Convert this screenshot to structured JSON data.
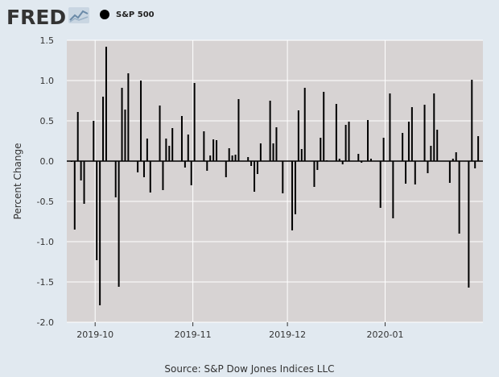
{
  "header": {
    "logo_text": "FRED",
    "logo_icon": "chart-line-icon"
  },
  "legend": {
    "series_label": "S&P 500",
    "marker_color": "#000000"
  },
  "source_text": "Source: S&P Dow Jones Indices LLC",
  "colors": {
    "page_background": "#e1e9f0",
    "plot_background": "#d7d3d3",
    "bars": "#000000"
  },
  "chart_data": {
    "type": "bar",
    "series": [
      {
        "name": "S&P 500"
      }
    ],
    "ylabel": "Percent Change",
    "xlabel": "",
    "ylim": [
      -2.0,
      1.5
    ],
    "yticks": [
      "1.5",
      "1.0",
      "0.5",
      "0.0",
      "-0.5",
      "-1.0",
      "-1.5",
      "-2.0"
    ],
    "ytick_values": [
      1.5,
      1.0,
      0.5,
      0.0,
      -0.5,
      -1.0,
      -1.5,
      -2.0
    ],
    "xlim": [
      "2019-09-22",
      "2020-01-30"
    ],
    "xticks": [
      {
        "label": "2019-10",
        "date": "2019-10-01"
      },
      {
        "label": "2019-11",
        "date": "2019-11-01"
      },
      {
        "label": "2019-12",
        "date": "2019-12-01"
      },
      {
        "label": "2020-01",
        "date": "2020-01-01"
      }
    ],
    "grid": true,
    "points": [
      {
        "x": "2019-09-23",
        "y": -0.01
      },
      {
        "x": "2019-09-24",
        "y": -0.85
      },
      {
        "x": "2019-09-25",
        "y": 0.61
      },
      {
        "x": "2019-09-26",
        "y": -0.24
      },
      {
        "x": "2019-09-27",
        "y": -0.53
      },
      {
        "x": "2019-09-30",
        "y": 0.5
      },
      {
        "x": "2019-10-01",
        "y": -1.23
      },
      {
        "x": "2019-10-02",
        "y": -1.79
      },
      {
        "x": "2019-10-03",
        "y": 0.8
      },
      {
        "x": "2019-10-04",
        "y": 1.42
      },
      {
        "x": "2019-10-07",
        "y": -0.45
      },
      {
        "x": "2019-10-08",
        "y": -1.56
      },
      {
        "x": "2019-10-09",
        "y": 0.91
      },
      {
        "x": "2019-10-10",
        "y": 0.64
      },
      {
        "x": "2019-10-11",
        "y": 1.09
      },
      {
        "x": "2019-10-14",
        "y": -0.14
      },
      {
        "x": "2019-10-15",
        "y": 1.0
      },
      {
        "x": "2019-10-16",
        "y": -0.2
      },
      {
        "x": "2019-10-17",
        "y": 0.28
      },
      {
        "x": "2019-10-18",
        "y": -0.39
      },
      {
        "x": "2019-10-21",
        "y": 0.69
      },
      {
        "x": "2019-10-22",
        "y": -0.36
      },
      {
        "x": "2019-10-23",
        "y": 0.28
      },
      {
        "x": "2019-10-24",
        "y": 0.19
      },
      {
        "x": "2019-10-25",
        "y": 0.41
      },
      {
        "x": "2019-10-28",
        "y": 0.56
      },
      {
        "x": "2019-10-29",
        "y": -0.08
      },
      {
        "x": "2019-10-30",
        "y": 0.33
      },
      {
        "x": "2019-10-31",
        "y": -0.3
      },
      {
        "x": "2019-11-01",
        "y": 0.97
      },
      {
        "x": "2019-11-04",
        "y": 0.37
      },
      {
        "x": "2019-11-05",
        "y": -0.12
      },
      {
        "x": "2019-11-06",
        "y": 0.07
      },
      {
        "x": "2019-11-07",
        "y": 0.27
      },
      {
        "x": "2019-11-08",
        "y": 0.26
      },
      {
        "x": "2019-11-11",
        "y": -0.2
      },
      {
        "x": "2019-11-12",
        "y": 0.16
      },
      {
        "x": "2019-11-13",
        "y": 0.07
      },
      {
        "x": "2019-11-14",
        "y": 0.08
      },
      {
        "x": "2019-11-15",
        "y": 0.77
      },
      {
        "x": "2019-11-18",
        "y": 0.05
      },
      {
        "x": "2019-11-19",
        "y": -0.06
      },
      {
        "x": "2019-11-20",
        "y": -0.38
      },
      {
        "x": "2019-11-21",
        "y": -0.16
      },
      {
        "x": "2019-11-22",
        "y": 0.22
      },
      {
        "x": "2019-11-25",
        "y": 0.75
      },
      {
        "x": "2019-11-26",
        "y": 0.22
      },
      {
        "x": "2019-11-27",
        "y": 0.42
      },
      {
        "x": "2019-11-29",
        "y": -0.4
      },
      {
        "x": "2019-12-02",
        "y": -0.86
      },
      {
        "x": "2019-12-03",
        "y": -0.66
      },
      {
        "x": "2019-12-04",
        "y": 0.63
      },
      {
        "x": "2019-12-05",
        "y": 0.15
      },
      {
        "x": "2019-12-06",
        "y": 0.91
      },
      {
        "x": "2019-12-09",
        "y": -0.32
      },
      {
        "x": "2019-12-10",
        "y": -0.11
      },
      {
        "x": "2019-12-11",
        "y": 0.29
      },
      {
        "x": "2019-12-12",
        "y": 0.86
      },
      {
        "x": "2019-12-13",
        "y": 0.01
      },
      {
        "x": "2019-12-16",
        "y": 0.71
      },
      {
        "x": "2019-12-17",
        "y": 0.03
      },
      {
        "x": "2019-12-18",
        "y": -0.04
      },
      {
        "x": "2019-12-19",
        "y": 0.45
      },
      {
        "x": "2019-12-20",
        "y": 0.49
      },
      {
        "x": "2019-12-23",
        "y": 0.09
      },
      {
        "x": "2019-12-24",
        "y": -0.02
      },
      {
        "x": "2019-12-26",
        "y": 0.51
      },
      {
        "x": "2019-12-27",
        "y": 0.03
      },
      {
        "x": "2019-12-30",
        "y": -0.58
      },
      {
        "x": "2019-12-31",
        "y": 0.29
      },
      {
        "x": "2020-01-02",
        "y": 0.84
      },
      {
        "x": "2020-01-03",
        "y": -0.71
      },
      {
        "x": "2020-01-06",
        "y": 0.35
      },
      {
        "x": "2020-01-07",
        "y": -0.28
      },
      {
        "x": "2020-01-08",
        "y": 0.49
      },
      {
        "x": "2020-01-09",
        "y": 0.67
      },
      {
        "x": "2020-01-10",
        "y": -0.29
      },
      {
        "x": "2020-01-13",
        "y": 0.7
      },
      {
        "x": "2020-01-14",
        "y": -0.15
      },
      {
        "x": "2020-01-15",
        "y": 0.19
      },
      {
        "x": "2020-01-16",
        "y": 0.84
      },
      {
        "x": "2020-01-17",
        "y": 0.39
      },
      {
        "x": "2020-01-21",
        "y": -0.27
      },
      {
        "x": "2020-01-22",
        "y": 0.03
      },
      {
        "x": "2020-01-23",
        "y": 0.11
      },
      {
        "x": "2020-01-24",
        "y": -0.9
      },
      {
        "x": "2020-01-27",
        "y": -1.57
      },
      {
        "x": "2020-01-28",
        "y": 1.01
      },
      {
        "x": "2020-01-29",
        "y": -0.09
      },
      {
        "x": "2020-01-30",
        "y": 0.31
      }
    ]
  }
}
